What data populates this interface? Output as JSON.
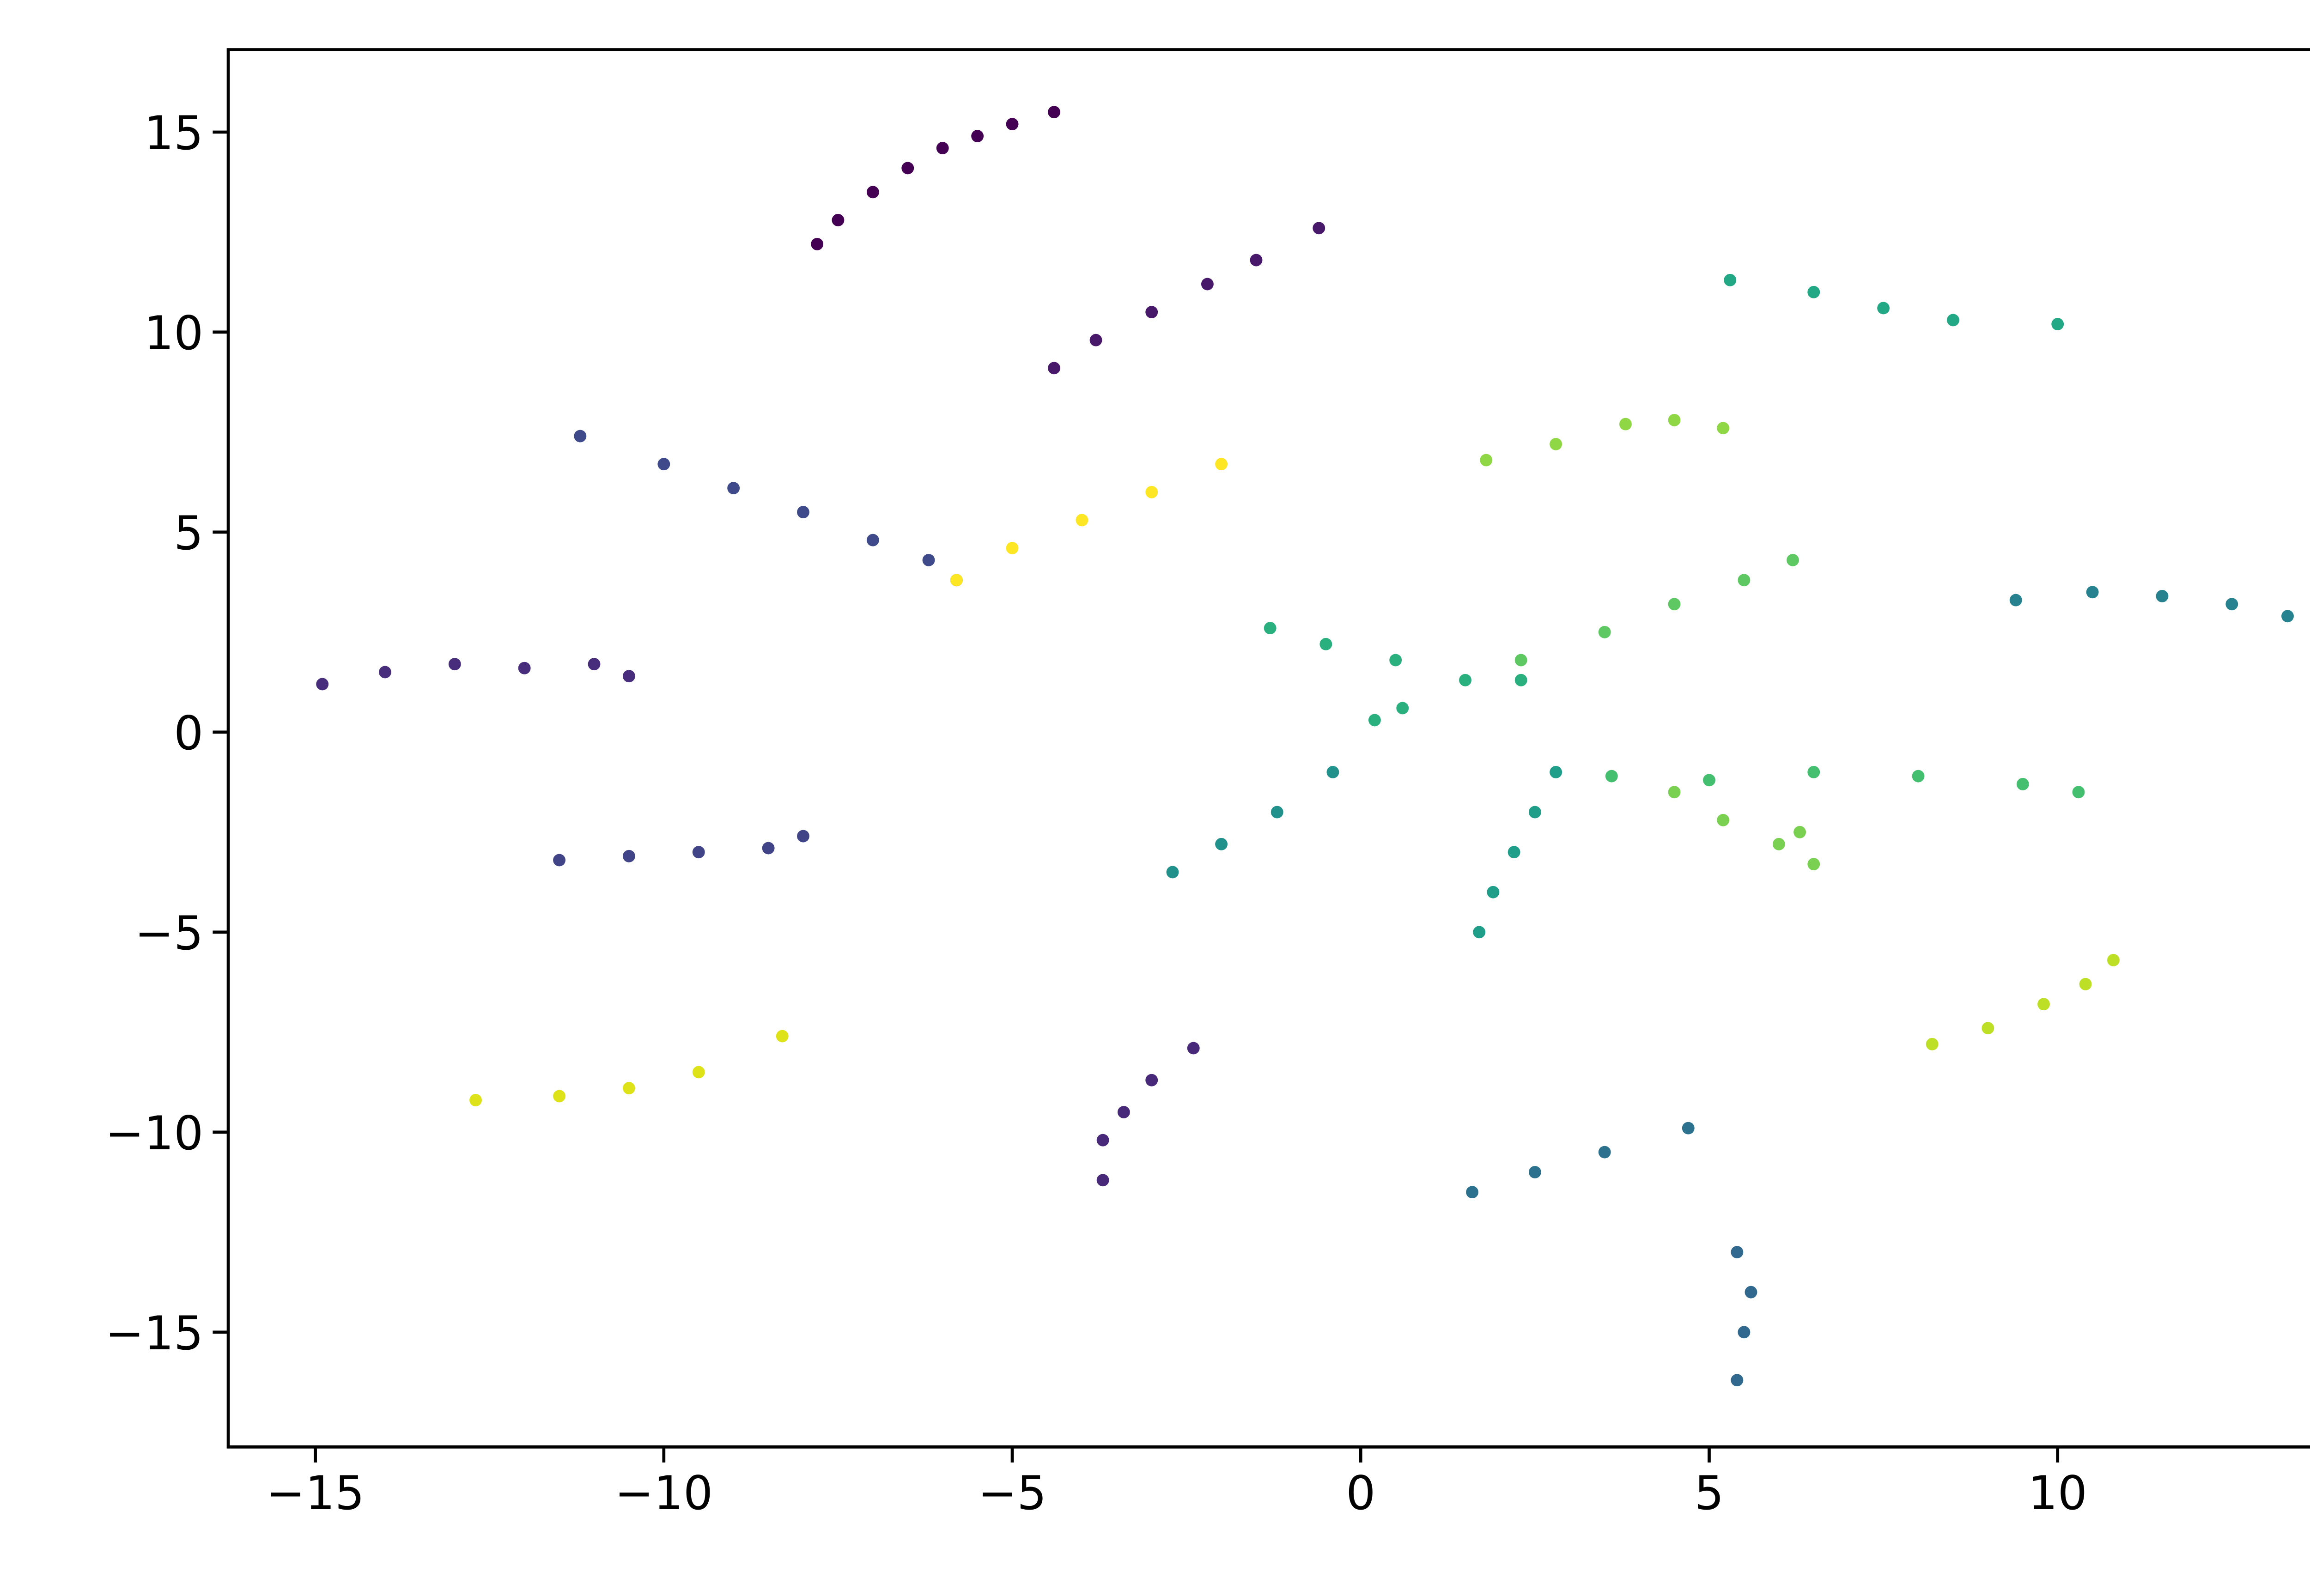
{
  "chart_data": {
    "type": "scatter",
    "xlim": [
      -16.25,
      14.72
    ],
    "ylim": [
      -17.87,
      17.06
    ],
    "xticks": [
      {
        "value": -15,
        "label": "−15"
      },
      {
        "value": -10,
        "label": "−10"
      },
      {
        "value": -5,
        "label": "−5"
      },
      0,
      5,
      10
    ],
    "yticks": [
      {
        "value": -15,
        "label": "−15"
      },
      {
        "value": -10,
        "label": "−10"
      },
      {
        "value": -5,
        "label": "−5"
      },
      0,
      5,
      10,
      15
    ],
    "series": [
      {
        "color": "#440154",
        "x": [
          -7.8,
          -7.5,
          -7,
          -6.5,
          -6,
          -5.5,
          -5,
          -4.4
        ],
        "values": [
          12.2,
          12.8,
          13.5,
          14.1,
          14.6,
          14.9,
          15.2,
          15.5
        ]
      },
      {
        "color": "#48186a",
        "x": [
          -4.4,
          -3.8,
          -3,
          -2.2,
          -1.5,
          -0.6
        ],
        "values": [
          9.1,
          9.8,
          10.5,
          11.2,
          11.8,
          12.6
        ]
      },
      {
        "color": "#3e4a89",
        "x": [
          -11.2,
          -10,
          -9,
          -8,
          -7,
          -6.2,
          -5.8
        ],
        "values": [
          7.4,
          6.7,
          6.1,
          5.5,
          4.8,
          4.3,
          3.8
        ]
      },
      {
        "color": "#fde725",
        "x": [
          -5.8,
          -5,
          -4,
          -3,
          -2
        ],
        "values": [
          3.8,
          4.6,
          5.3,
          6,
          6.7
        ]
      },
      {
        "color": "#472d7b",
        "x": [
          -14.9,
          -14,
          -13,
          -12,
          -11,
          -10.5
        ],
        "values": [
          1.2,
          1.5,
          1.7,
          1.6,
          1.7,
          1.4
        ]
      },
      {
        "color": "#414487",
        "x": [
          -11.5,
          -10.5,
          -9.5,
          -8.5,
          -8
        ],
        "values": [
          -3.2,
          -3.1,
          -3,
          -2.9,
          -2.6
        ]
      },
      {
        "color": "#dde318",
        "x": [
          -12.7,
          -11.5,
          -10.5,
          -9.5,
          -8.3
        ],
        "values": [
          -9.2,
          -9.1,
          -8.9,
          -8.5,
          -7.6
        ]
      },
      {
        "color": "#482878",
        "x": [
          -3.7,
          -3.7,
          -3.4,
          -3,
          -2.4
        ],
        "values": [
          -11.2,
          -10.2,
          -9.5,
          -8.7,
          -7.9
        ]
      },
      {
        "color": "#2c728e",
        "x": [
          1.6,
          2.5,
          3.5,
          4.7
        ],
        "values": [
          -11.5,
          -11,
          -10.5,
          -9.9
        ]
      },
      {
        "color": "#31688e",
        "x": [
          5.4,
          5.6,
          5.5,
          5.4
        ],
        "values": [
          -13,
          -14,
          -15,
          -16.2
        ]
      },
      {
        "color": "#21918c",
        "x": [
          -2.7,
          -2,
          -1.2,
          -0.4
        ],
        "values": [
          -3.5,
          -2.8,
          -2,
          -1
        ]
      },
      {
        "color": "#1f9e89",
        "x": [
          1.7,
          1.9,
          2.2,
          2.5,
          2.8
        ],
        "values": [
          -5,
          -4,
          -3,
          -2,
          -1
        ]
      },
      {
        "color": "#26828e",
        "x": [
          9.4,
          10.5,
          11.5,
          12.5,
          13.3
        ],
        "values": [
          3.3,
          3.5,
          3.4,
          3.2,
          2.9
        ]
      },
      {
        "color": "#22a884",
        "x": [
          5.3,
          6.5,
          7.5,
          8.5,
          10
        ],
        "values": [
          11.3,
          11,
          10.6,
          10.3,
          10.2
        ]
      },
      {
        "color": "#2ab07f",
        "x": [
          -1.3,
          -0.5,
          0.5,
          1.5,
          2.3,
          0.6,
          0.2
        ],
        "values": [
          2.6,
          2.2,
          1.8,
          1.3,
          1.3,
          0.6,
          0.3
        ]
      },
      {
        "color": "#5ec962",
        "x": [
          2.3,
          3.5,
          4.5,
          5.5,
          6.2
        ],
        "values": [
          1.8,
          2.5,
          3.2,
          3.8,
          4.3
        ]
      },
      {
        "color": "#44bf70",
        "x": [
          3.6,
          5,
          6.5,
          8,
          9.5,
          10.3
        ],
        "values": [
          -1.1,
          -1.2,
          -1,
          -1.1,
          -1.3,
          -1.5
        ]
      },
      {
        "color": "#7ad151",
        "x": [
          4.5,
          5.2,
          6,
          6.5,
          6.3
        ],
        "values": [
          -1.5,
          -2.2,
          -2.8,
          -3.3,
          -2.5
        ]
      },
      {
        "color": "#8fd744",
        "x": [
          1.8,
          2.8,
          3.8,
          4.5,
          5.2
        ],
        "values": [
          6.8,
          7.2,
          7.7,
          7.8,
          7.6
        ]
      },
      {
        "color": "#bddf26",
        "x": [
          8.2,
          9,
          9.8,
          10.4,
          10.8
        ],
        "values": [
          -7.8,
          -7.4,
          -6.8,
          -6.3,
          -5.7
        ]
      }
    ]
  }
}
